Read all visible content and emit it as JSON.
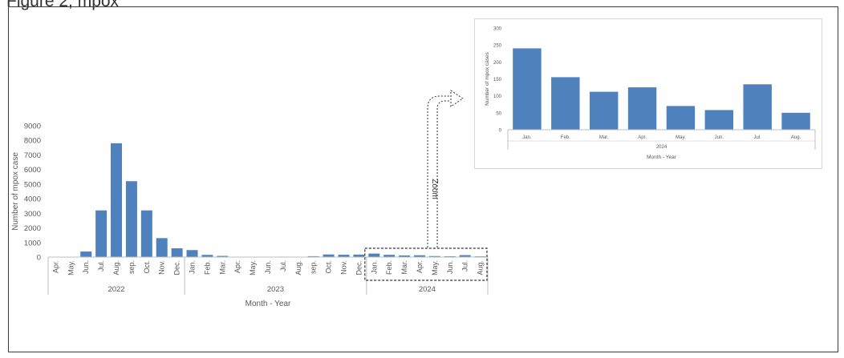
{
  "page": {
    "caption_fragment": "Figure 2, mpox"
  },
  "colors": {
    "bar": "#4f81bd",
    "axis": "#bfbfbf",
    "text": "#595959",
    "annotation": "#333333"
  },
  "annotation": {
    "zoom_label": "Zoom"
  },
  "chart_data": [
    {
      "type": "bar",
      "title": "",
      "xlabel": "Month - Year",
      "ylabel": "Number of mpox case",
      "ylim": [
        0,
        9000
      ],
      "yticks": [
        0,
        1000,
        2000,
        3000,
        4000,
        5000,
        6000,
        7000,
        8000,
        9000
      ],
      "grid": false,
      "legend": "none",
      "groups": [
        {
          "label": "2022",
          "count": 9
        },
        {
          "label": "2023",
          "count": 12
        },
        {
          "label": "2024",
          "count": 8
        }
      ],
      "categories": [
        "Apr.",
        "May.",
        "Jun.",
        "Jul.",
        "Aug.",
        "sep.",
        "Oct.",
        "Nov.",
        "Dec.",
        "Jan.",
        "Feb.",
        "Mar.",
        "Apr.",
        "May.",
        "Jun.",
        "Jul.",
        "Aug.",
        "sep.",
        "Oct.",
        "Nov.",
        "Dec.",
        "Jan.",
        "Feb.",
        "Mar.",
        "Apr.",
        "May.",
        "Jun.",
        "Jul.",
        "Aug."
      ],
      "values": [
        2,
        20,
        380,
        3200,
        7800,
        5200,
        3200,
        1300,
        600,
        480,
        150,
        80,
        20,
        10,
        10,
        30,
        20,
        60,
        180,
        160,
        170,
        240,
        155,
        112,
        125,
        70,
        58,
        134,
        50
      ]
    },
    {
      "type": "bar",
      "title": "",
      "xlabel": "Month - Year",
      "ylabel": "Number of mpox cases",
      "ylim": [
        0,
        300
      ],
      "yticks": [
        0,
        50,
        100,
        150,
        200,
        250,
        300
      ],
      "grid": false,
      "legend": "none",
      "groups": [
        {
          "label": "2024",
          "count": 8
        }
      ],
      "categories": [
        "Jan.",
        "Feb.",
        "Mar.",
        "Apr.",
        "May.",
        "Jun.",
        "Jul.",
        "Aug."
      ],
      "values": [
        240,
        155,
        112,
        125,
        70,
        58,
        134,
        50
      ]
    }
  ]
}
